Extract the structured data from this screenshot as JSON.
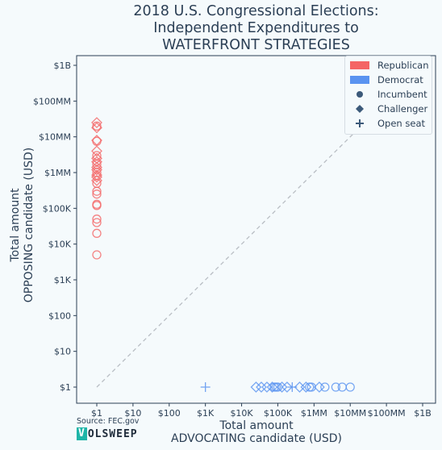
{
  "title_lines": [
    "2018 U.S. Congressional Elections:",
    "Independent Expenditures to",
    "WATERFRONT STRATEGIES"
  ],
  "ylabel_lines": [
    "Total amount",
    "OPPOSING candidate (USD)"
  ],
  "xlabel_lines": [
    "Total amount",
    "ADVOCATING candidate (USD)"
  ],
  "source": "Source: FEC.gov",
  "logo": {
    "first": "V",
    "rest": "OLSWEEP"
  },
  "colors": {
    "republican": "#f46565",
    "democrat": "#5a93f0",
    "neutral": "#3c5a7a",
    "diagonal": "#b9bec4"
  },
  "legend": {
    "items": [
      {
        "label": "Republican",
        "symbol": "patch",
        "color": "republican"
      },
      {
        "label": "Democrat",
        "symbol": "patch",
        "color": "democrat"
      },
      {
        "label": "Incumbent",
        "symbol": "circle",
        "color": "neutral"
      },
      {
        "label": "Challenger",
        "symbol": "diamond",
        "color": "neutral"
      },
      {
        "label": "Open seat",
        "symbol": "plus",
        "color": "neutral"
      }
    ],
    "placement": "top-right"
  },
  "chart_data": {
    "type": "scatter",
    "xscale": "log",
    "yscale": "log",
    "xlim": [
      1,
      1000000000
    ],
    "ylim": [
      1,
      1000000000
    ],
    "xticks": [
      {
        "value": 1,
        "label": "$1"
      },
      {
        "value": 10,
        "label": "$10"
      },
      {
        "value": 100,
        "label": "$100"
      },
      {
        "value": 1000,
        "label": "$1K"
      },
      {
        "value": 10000,
        "label": "$10K"
      },
      {
        "value": 100000,
        "label": "$100K"
      },
      {
        "value": 1000000,
        "label": "$1MM"
      },
      {
        "value": 10000000,
        "label": "$10MM"
      },
      {
        "value": 100000000,
        "label": "$100MM"
      },
      {
        "value": 1000000000,
        "label": "$1B"
      }
    ],
    "yticks": [
      {
        "value": 1,
        "label": "$1"
      },
      {
        "value": 10,
        "label": "$10"
      },
      {
        "value": 100,
        "label": "$100"
      },
      {
        "value": 1000,
        "label": "$1K"
      },
      {
        "value": 10000,
        "label": "$10K"
      },
      {
        "value": 100000,
        "label": "$100K"
      },
      {
        "value": 1000000,
        "label": "$1MM"
      },
      {
        "value": 10000000,
        "label": "$10MM"
      },
      {
        "value": 100000000,
        "label": "$100MM"
      },
      {
        "value": 1000000000,
        "label": "$1B"
      }
    ],
    "reference_line": {
      "from": [
        1,
        1
      ],
      "to": [
        1000000000,
        1000000000
      ],
      "style": "dashed"
    },
    "series": [
      {
        "name": "Republican",
        "points": [
          {
            "x": 1,
            "y": 25000000,
            "status": "challenger"
          },
          {
            "x": 1,
            "y": 18000000,
            "status": "challenger"
          },
          {
            "x": 1,
            "y": 20000000,
            "status": "incumbent"
          },
          {
            "x": 1,
            "y": 8000000,
            "status": "challenger"
          },
          {
            "x": 1,
            "y": 7500000,
            "status": "incumbent"
          },
          {
            "x": 1,
            "y": 4000000,
            "status": "challenger"
          },
          {
            "x": 1,
            "y": 3000000,
            "status": "incumbent"
          },
          {
            "x": 1,
            "y": 2500000,
            "status": "challenger"
          },
          {
            "x": 1,
            "y": 2000000,
            "status": "challenger"
          },
          {
            "x": 1,
            "y": 1700000,
            "status": "incumbent"
          },
          {
            "x": 1,
            "y": 1400000,
            "status": "challenger"
          },
          {
            "x": 1,
            "y": 1200000,
            "status": "challenger"
          },
          {
            "x": 1,
            "y": 1000000,
            "status": "incumbent"
          },
          {
            "x": 1,
            "y": 850000,
            "status": "challenger"
          },
          {
            "x": 1,
            "y": 750000,
            "status": "challenger"
          },
          {
            "x": 1,
            "y": 600000,
            "status": "challenger"
          },
          {
            "x": 1,
            "y": 500000,
            "status": "incumbent"
          },
          {
            "x": 1,
            "y": 300000,
            "status": "incumbent"
          },
          {
            "x": 1,
            "y": 250000,
            "status": "incumbent"
          },
          {
            "x": 1,
            "y": 130000,
            "status": "incumbent"
          },
          {
            "x": 1,
            "y": 120000,
            "status": "incumbent"
          },
          {
            "x": 1,
            "y": 50000,
            "status": "incumbent"
          },
          {
            "x": 1,
            "y": 40000,
            "status": "incumbent"
          },
          {
            "x": 1,
            "y": 20000,
            "status": "incumbent"
          },
          {
            "x": 1,
            "y": 5000,
            "status": "incumbent"
          }
        ]
      },
      {
        "name": "Democrat",
        "points": [
          {
            "x": 1000,
            "y": 1,
            "status": "open"
          },
          {
            "x": 25000,
            "y": 1,
            "status": "challenger"
          },
          {
            "x": 35000,
            "y": 1,
            "status": "challenger"
          },
          {
            "x": 50000,
            "y": 1,
            "status": "challenger"
          },
          {
            "x": 70000,
            "y": 1,
            "status": "challenger"
          },
          {
            "x": 80000,
            "y": 1,
            "status": "incumbent"
          },
          {
            "x": 90000,
            "y": 1,
            "status": "incumbent"
          },
          {
            "x": 100000,
            "y": 1,
            "status": "incumbent"
          },
          {
            "x": 130000,
            "y": 1,
            "status": "challenger"
          },
          {
            "x": 180000,
            "y": 1,
            "status": "challenger"
          },
          {
            "x": 250000,
            "y": 1,
            "status": "open"
          },
          {
            "x": 400000,
            "y": 1,
            "status": "challenger"
          },
          {
            "x": 600000,
            "y": 1,
            "status": "challenger"
          },
          {
            "x": 750000,
            "y": 1,
            "status": "incumbent"
          },
          {
            "x": 850000,
            "y": 1,
            "status": "incumbent"
          },
          {
            "x": 1400000,
            "y": 1,
            "status": "challenger"
          },
          {
            "x": 2000000,
            "y": 1,
            "status": "incumbent"
          },
          {
            "x": 4000000,
            "y": 1,
            "status": "incumbent"
          },
          {
            "x": 6000000,
            "y": 1,
            "status": "incumbent"
          },
          {
            "x": 10000000,
            "y": 1,
            "status": "incumbent"
          }
        ]
      }
    ]
  }
}
